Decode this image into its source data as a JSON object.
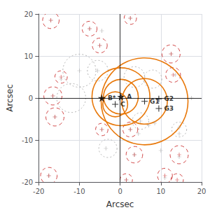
{
  "chart_data": {
    "type": "scatter",
    "xlabel": "Arcsec",
    "ylabel": "Arcsec",
    "xlim": [
      -20,
      20
    ],
    "ylim": [
      -20,
      20
    ],
    "xticks": [
      -20,
      -10,
      0,
      10,
      20
    ],
    "yticks": [
      -20,
      -10,
      0,
      10,
      20
    ],
    "grid": true,
    "hline": 0,
    "vline": 0,
    "series": [
      {
        "type": "scatter",
        "marker": "plus",
        "color": "#aaaaaa",
        "x": [
          -7.5,
          -4.5,
          2.5,
          12.5,
          -14.5,
          -16.5,
          -10.0,
          -5.5,
          -16.0,
          -4.5,
          2.5,
          4.5,
          3.5,
          14.5,
          14.5,
          -17.5,
          11.0,
          1.5,
          13.5,
          17.5,
          10.0,
          -5.0,
          -17.0,
          7.0,
          8.5,
          -3.5,
          5.0,
          14.5
        ],
        "y": [
          16.5,
          16.0,
          19.0,
          10.5,
          4.5,
          0.5,
          6.5,
          6.5,
          -4.5,
          -7.5,
          -7.5,
          -8.5,
          -13.5,
          -8.5,
          -14.0,
          -18.5,
          -19.0,
          -19.5,
          5.5,
          0.0,
          -12.5,
          12.5,
          18.5,
          -6.5,
          -6.0,
          -12.0,
          -5.5,
          -7.0
        ]
      },
      {
        "type": "circle",
        "line_style": "dotted",
        "color": "#aaaaaa",
        "cx": [
          -10.0,
          -5.5,
          -12.0,
          3.5,
          8.0,
          5.0,
          14.5,
          -3.0
        ],
        "cy": [
          6.5,
          6.5,
          0.0,
          5.0,
          4.5,
          -5.5,
          -7.5,
          -12.0
        ],
        "r": [
          4.0,
          2.5,
          3.5,
          2.5,
          2.2,
          2.0,
          1.8,
          2.2
        ]
      },
      {
        "type": "circle",
        "line_style": "dashed",
        "color": "#cc3333",
        "marker": "plus",
        "cx": [
          -17.0,
          -7.5,
          2.5,
          -5.0,
          12.5,
          -14.5,
          -16.5,
          -16.0,
          -4.5,
          2.5,
          3.5,
          14.5,
          -17.5,
          11.0,
          13.0,
          1.5,
          14.0
        ],
        "cy": [
          18.5,
          16.5,
          19.0,
          12.5,
          10.5,
          5.0,
          0.5,
          -4.5,
          -7.5,
          -7.5,
          -13.5,
          -13.5,
          -18.5,
          -18.5,
          5.5,
          -19.5,
          -19.5
        ],
        "r": [
          2.0,
          1.8,
          1.5,
          1.8,
          2.2,
          1.5,
          2.2,
          2.2,
          1.5,
          1.8,
          2.0,
          2.2,
          2.0,
          1.8,
          1.8,
          1.5,
          1.5
        ]
      },
      {
        "type": "circle",
        "line_style": "solid",
        "color": "#e8780a",
        "cx": [
          0.2,
          -1.2,
          0.2,
          6.0,
          6.0
        ],
        "cy": [
          0.3,
          -1.5,
          0.3,
          -0.8,
          -0.8
        ],
        "r": [
          4.2,
          3.0,
          7.0,
          5.5,
          10.5
        ]
      },
      {
        "type": "scatter",
        "marker": "star",
        "color": "black",
        "x": [
          0.2,
          -4.5
        ],
        "y": [
          0.3,
          0.0
        ],
        "labels": [
          "A",
          "B*"
        ]
      },
      {
        "type": "scatter",
        "marker": "plus",
        "color": "black",
        "x": [
          -1.2,
          6.0,
          9.5,
          9.5
        ],
        "y": [
          -1.5,
          -0.8,
          -0.2,
          -2.5
        ],
        "labels": [
          "C",
          "G1",
          "G2",
          "G3"
        ]
      }
    ]
  }
}
